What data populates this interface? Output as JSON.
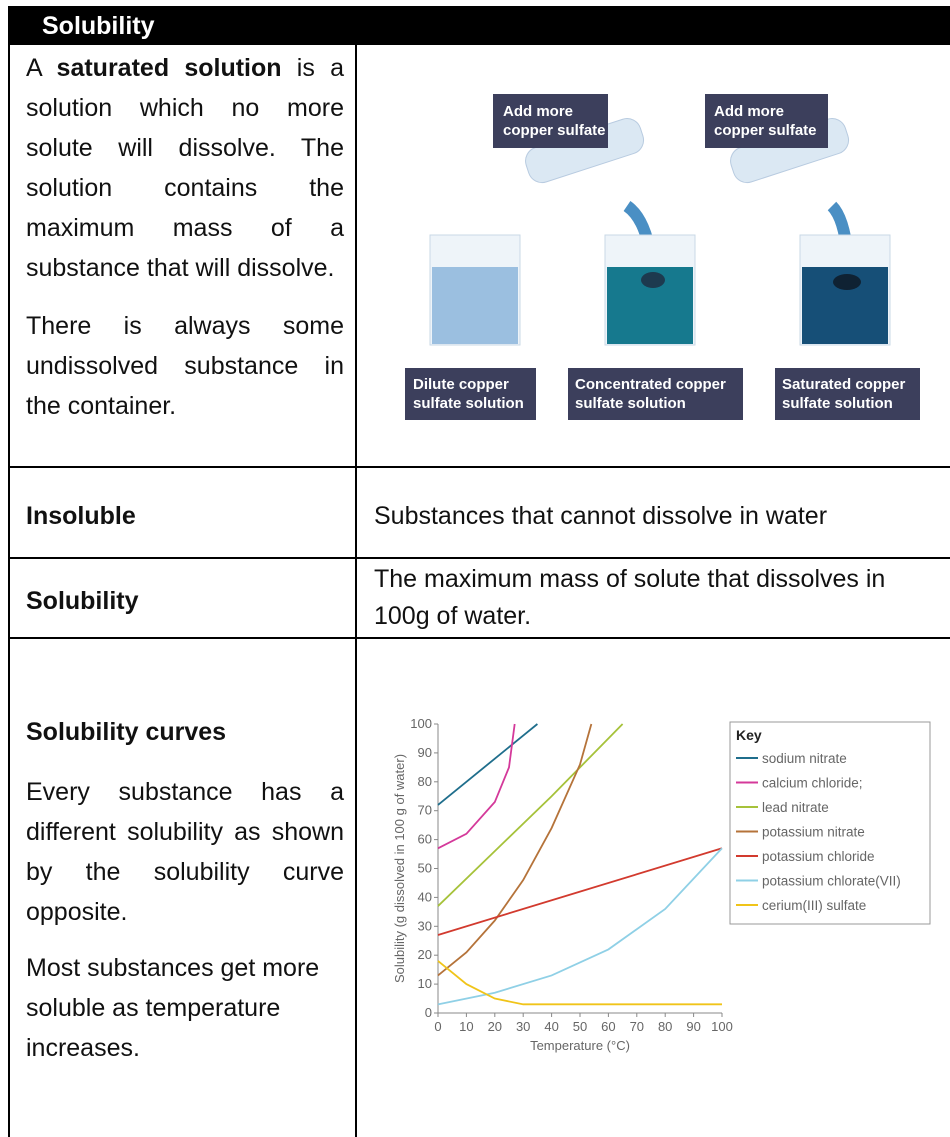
{
  "header": {
    "title": "Solubility"
  },
  "saturated": {
    "paragraphs": [
      [
        "A ",
        "saturated solution",
        " is a solution which no more solute will dissolve.  The solution contains the maximum mass of a substance that will dissolve."
      ],
      [
        "There is always some undissolved substance in the container."
      ]
    ]
  },
  "diagram": {
    "add_labels": [
      [
        "Add more",
        "copper sulfate"
      ],
      [
        "Add more",
        "copper sulfate"
      ]
    ],
    "beaker_labels": [
      [
        "Dilute copper",
        "sulfate solution"
      ],
      [
        "Concentrated copper",
        "sulfate solution"
      ],
      [
        "Saturated copper",
        "sulfate solution"
      ]
    ]
  },
  "table": {
    "rows": [
      [
        "Insoluble",
        "Substances that cannot dissolve in water"
      ],
      [
        "Solubility",
        "The maximum mass of solute that dissolves in 100g of water."
      ]
    ]
  },
  "curves": {
    "heading": "Solubility curves",
    "paragraphs": [
      "Every substance has a different solubility as shown by the solubility curve opposite.",
      "Most substances get more soluble as temperature increases."
    ]
  },
  "chart_data": {
    "type": "line",
    "x_label": "Temperature (°C)",
    "y_label": "Solubility (g dissolved in 100 g of water)",
    "legend_title": "Key",
    "legend": "upper right",
    "xlim": [
      0,
      100
    ],
    "ylim": [
      0,
      100
    ],
    "xticks": [
      0,
      10,
      20,
      30,
      40,
      50,
      60,
      70,
      80,
      90,
      100
    ],
    "yticks": [
      0,
      10,
      20,
      30,
      40,
      50,
      60,
      70,
      80,
      90,
      100
    ],
    "series": [
      {
        "name": "sodium nitrate",
        "color": "#1f6e8c",
        "x": [
          0,
          10,
          20,
          30,
          35
        ],
        "values": [
          72,
          80,
          88,
          96,
          100
        ]
      },
      {
        "name": "calcium chloride;",
        "color": "#d4399a",
        "x": [
          0,
          10,
          20,
          25,
          27
        ],
        "values": [
          57,
          62,
          73,
          85,
          100
        ]
      },
      {
        "name": "lead nitrate",
        "color": "#a6c23a",
        "x": [
          0,
          20,
          40,
          65
        ],
        "values": [
          37,
          56,
          75,
          100
        ]
      },
      {
        "name": "potassium nitrate",
        "color": "#b5733a",
        "x": [
          0,
          10,
          20,
          30,
          40,
          50,
          54
        ],
        "values": [
          13,
          21,
          32,
          46,
          64,
          86,
          100
        ]
      },
      {
        "name": "potassium chloride",
        "color": "#d23a2e",
        "x": [
          0,
          50,
          100
        ],
        "values": [
          27,
          42,
          57
        ]
      },
      {
        "name": "potassium chlorate(VII)",
        "color": "#8fd0e6",
        "x": [
          0,
          20,
          40,
          60,
          80,
          100
        ],
        "values": [
          3,
          7,
          13,
          22,
          36,
          57
        ]
      },
      {
        "name": "cerium(III) sulfate",
        "color": "#f0c419",
        "x": [
          0,
          10,
          20,
          30,
          100
        ],
        "values": [
          18,
          10,
          5,
          3,
          3
        ]
      }
    ]
  }
}
